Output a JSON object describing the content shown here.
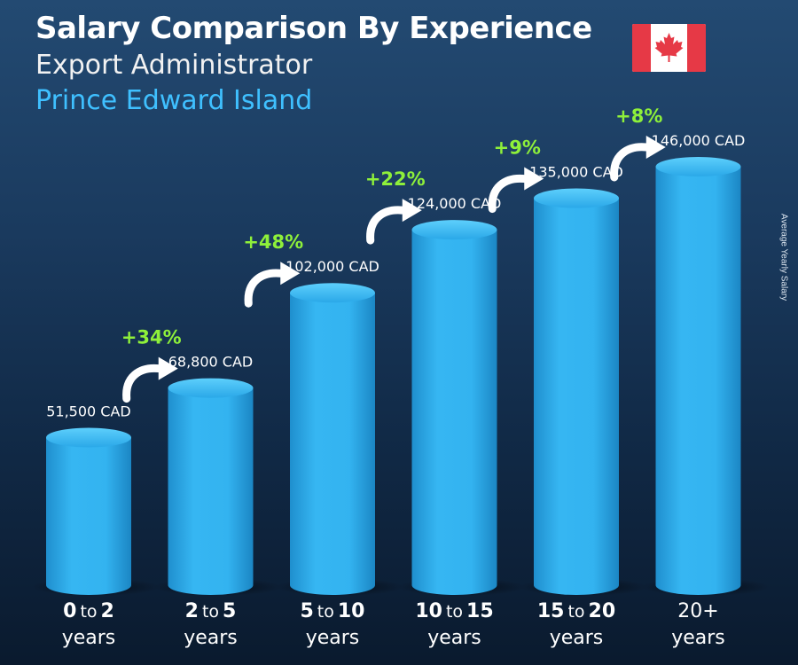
{
  "header": {
    "title": "Salary Comparison By Experience",
    "subtitle": "Export Administrator",
    "location": "Prince Edward Island"
  },
  "colors": {
    "bar": "#2fb4f0",
    "bar_top": "#4cc6fb",
    "increase": "#8ef03a",
    "location": "#3fc0ff"
  },
  "chart_data": {
    "type": "bar",
    "ylabel": "Average Yearly Salary",
    "categories": [
      "0 to 2 years",
      "2 to 5 years",
      "5 to 10 years",
      "10 to 15 years",
      "15 to 20 years",
      "20+ years"
    ],
    "category_parts": [
      {
        "from": "0",
        "sep": "to",
        "to": "2",
        "unit": "years"
      },
      {
        "from": "2",
        "sep": "to",
        "to": "5",
        "unit": "years"
      },
      {
        "from": "5",
        "sep": "to",
        "to": "10",
        "unit": "years"
      },
      {
        "from": "10",
        "sep": "to",
        "to": "15",
        "unit": "years"
      },
      {
        "from": "15",
        "sep": "to",
        "to": "20",
        "unit": "years"
      },
      {
        "from": "20+",
        "sep": "",
        "to": "",
        "unit": "years"
      }
    ],
    "values": [
      51500,
      68800,
      102000,
      124000,
      135000,
      146000
    ],
    "value_labels": [
      "51,500 CAD",
      "68,800 CAD",
      "102,000 CAD",
      "124,000 CAD",
      "135,000 CAD",
      "146,000 CAD"
    ],
    "increases": [
      "+34%",
      "+48%",
      "+22%",
      "+9%",
      "+8%"
    ],
    "currency": "CAD"
  }
}
